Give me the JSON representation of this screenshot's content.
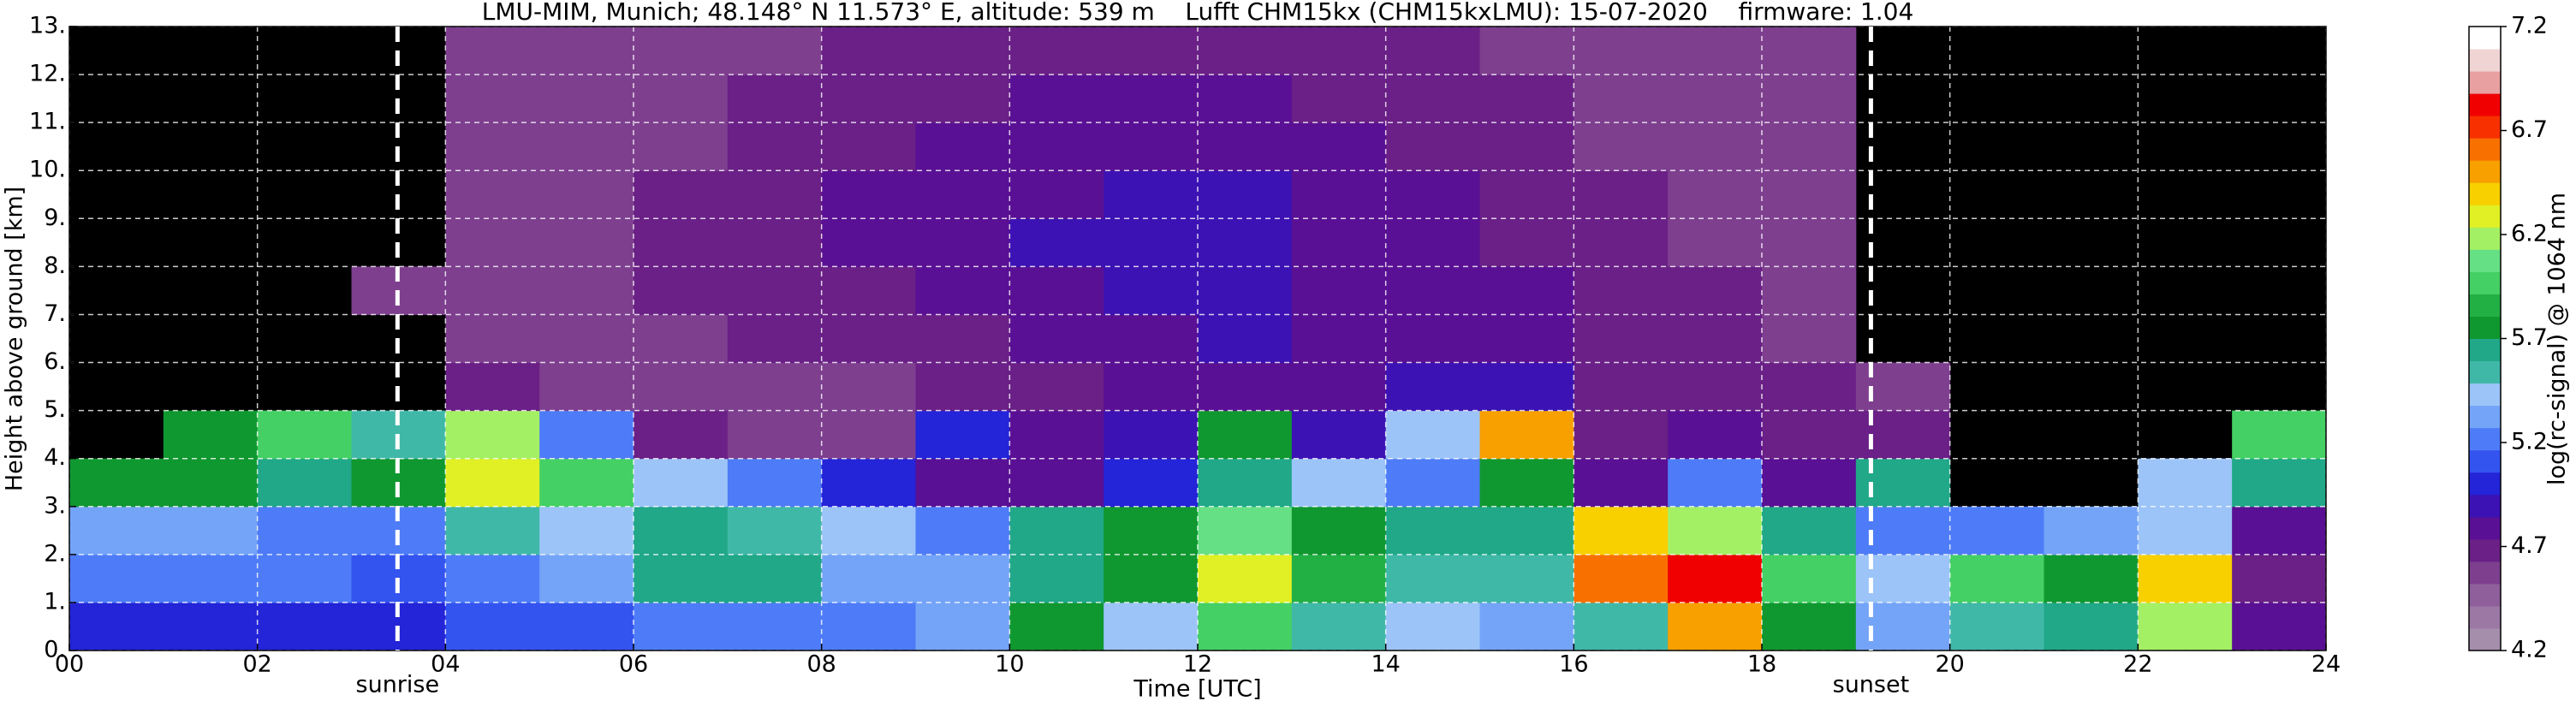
{
  "chart_data": {
    "type": "heatmap",
    "title": "LMU-MIM, Munich; 48.148° N 11.573° E, altitude: 539 m    Lufft CHM15kx (CHM15kxLMU): 15-07-2020    firmware: 1.04",
    "xlabel": "Time [UTC]",
    "ylabel": "Height above ground [km]",
    "colorbar_label": "log(rc-signal) @ 1064 nm",
    "xlim": [
      0,
      24
    ],
    "ylim": [
      0,
      13
    ],
    "xticks": [
      {
        "value": 0,
        "label": "00"
      },
      {
        "value": 2,
        "label": "02"
      },
      {
        "value": 4,
        "label": "04"
      },
      {
        "value": 6,
        "label": "06"
      },
      {
        "value": 8,
        "label": "08"
      },
      10,
      12,
      14,
      16,
      18,
      20,
      22,
      24
    ],
    "yticks": [
      {
        "value": 0,
        "label": "0."
      },
      {
        "value": 1,
        "label": "1."
      },
      {
        "value": 2,
        "label": "2."
      },
      {
        "value": 3,
        "label": "3."
      },
      {
        "value": 4,
        "label": "4."
      },
      {
        "value": 5,
        "label": "5."
      },
      {
        "value": 6,
        "label": "6."
      },
      {
        "value": 7,
        "label": "7."
      },
      {
        "value": 8,
        "label": "8."
      },
      {
        "value": 9,
        "label": "9."
      },
      {
        "value": 10,
        "label": "10."
      },
      {
        "value": 11,
        "label": "11."
      },
      {
        "value": 12,
        "label": "12."
      },
      {
        "value": 13,
        "label": "13."
      }
    ],
    "zlim": [
      4.2,
      7.2
    ],
    "zticks": [
      4.2,
      4.7,
      5.2,
      5.7,
      6.2,
      6.7,
      7.2
    ],
    "grid": true,
    "background": "#000000",
    "colors": [
      "#a58eab",
      "#9c78a5",
      "#8f5f9c",
      "#7e3f8f",
      "#6a2086",
      "#5a1094",
      "#3c12b4",
      "#2424d8",
      "#3454f0",
      "#4e7cf8",
      "#74a4f8",
      "#9cc4f8",
      "#40b8a8",
      "#20a888",
      "#109830",
      "#22b044",
      "#44d064",
      "#66e084",
      "#a4f064",
      "#e0f024",
      "#f8d000",
      "#f8a000",
      "#f87000",
      "#f83000",
      "#f00000",
      "#e8a0a0",
      "#f0d4d4",
      "#ffffff"
    ],
    "annotations": [
      {
        "x": 3.49,
        "label": "sunrise"
      },
      {
        "x": 19.16,
        "label": "sunset"
      }
    ],
    "x": [
      0.5,
      1.5,
      2.5,
      3.5,
      4.5,
      5.5,
      6.5,
      7.5,
      8.5,
      9.5,
      10.5,
      11.5,
      12.5,
      13.5,
      14.5,
      15.5,
      16.5,
      17.5,
      18.5,
      19.5,
      20.5,
      21.5,
      22.5,
      23.5
    ],
    "y": [
      0.5,
      1.5,
      2.5,
      3.5,
      4.5,
      5.5,
      6.5,
      7.5,
      8.5,
      9.5,
      10.5,
      11.5,
      12.5
    ],
    "z": [
      [
        5.0,
        5.0,
        5.0,
        5.0,
        5.1,
        5.1,
        5.2,
        5.2,
        5.2,
        5.3,
        5.8,
        5.4,
        6.0,
        5.5,
        5.4,
        5.3,
        5.5,
        6.5,
        5.8,
        5.3,
        5.5,
        5.6,
        6.2,
        4.8
      ],
      [
        5.2,
        5.2,
        5.2,
        5.1,
        5.2,
        5.3,
        5.6,
        5.6,
        5.3,
        5.3,
        5.6,
        5.8,
        6.3,
        5.9,
        5.5,
        5.5,
        6.6,
        6.8,
        6.0,
        5.4,
        6.0,
        5.8,
        6.4,
        4.7
      ],
      [
        5.3,
        5.3,
        5.2,
        5.2,
        5.5,
        5.4,
        5.6,
        5.5,
        5.4,
        5.2,
        5.6,
        5.7,
        6.1,
        5.8,
        5.6,
        5.6,
        6.4,
        6.2,
        5.6,
        5.2,
        5.2,
        5.3,
        5.4,
        4.8
      ],
      [
        5.8,
        5.7,
        5.6,
        5.8,
        6.3,
        6.0,
        5.4,
        5.2,
        5.0,
        4.8,
        4.8,
        5.0,
        5.6,
        5.4,
        5.2,
        5.8,
        4.8,
        5.2,
        4.8,
        5.6,
        null,
        null,
        5.4,
        5.6
      ],
      [
        null,
        5.8,
        6.0,
        5.5,
        6.2,
        5.2,
        4.7,
        4.6,
        4.6,
        5.0,
        4.8,
        4.9,
        5.8,
        4.9,
        5.4,
        6.5,
        4.7,
        4.8,
        4.7,
        4.7,
        null,
        null,
        null,
        6.0
      ],
      [
        null,
        null,
        null,
        null,
        4.7,
        4.6,
        4.6,
        4.6,
        4.6,
        4.7,
        4.7,
        4.8,
        4.8,
        4.8,
        4.9,
        4.9,
        4.7,
        4.7,
        4.7,
        4.6,
        null,
        null,
        null,
        null
      ],
      [
        null,
        null,
        null,
        null,
        4.6,
        4.6,
        4.6,
        4.7,
        4.7,
        4.7,
        4.8,
        4.8,
        4.9,
        4.8,
        4.8,
        4.8,
        4.7,
        4.7,
        4.6,
        null,
        null,
        null,
        null,
        null
      ],
      [
        null,
        null,
        null,
        4.6,
        4.6,
        4.6,
        4.7,
        4.7,
        4.7,
        4.8,
        4.8,
        4.9,
        4.9,
        4.8,
        4.8,
        4.8,
        4.7,
        4.7,
        4.6,
        null,
        null,
        null,
        null,
        null
      ],
      [
        null,
        null,
        null,
        null,
        4.6,
        4.6,
        4.7,
        4.7,
        4.8,
        4.8,
        4.9,
        4.9,
        4.9,
        4.8,
        4.8,
        4.7,
        4.7,
        4.6,
        4.6,
        null,
        null,
        null,
        null,
        null
      ],
      [
        null,
        null,
        null,
        null,
        4.6,
        4.6,
        4.7,
        4.7,
        4.8,
        4.8,
        4.8,
        4.9,
        4.9,
        4.8,
        4.8,
        4.7,
        4.7,
        4.6,
        4.6,
        null,
        null,
        null,
        null,
        null
      ],
      [
        null,
        null,
        null,
        null,
        4.6,
        4.6,
        4.6,
        4.7,
        4.7,
        4.8,
        4.8,
        4.8,
        4.8,
        4.8,
        4.7,
        4.7,
        4.6,
        4.6,
        4.6,
        null,
        null,
        null,
        null,
        null
      ],
      [
        null,
        null,
        null,
        null,
        4.6,
        4.6,
        4.6,
        4.7,
        4.7,
        4.7,
        4.8,
        4.8,
        4.8,
        4.7,
        4.7,
        4.7,
        4.6,
        4.6,
        4.6,
        null,
        null,
        null,
        null,
        null
      ],
      [
        null,
        null,
        null,
        null,
        4.6,
        4.6,
        4.6,
        4.6,
        4.7,
        4.7,
        4.7,
        4.7,
        4.7,
        4.7,
        4.7,
        4.6,
        4.6,
        4.6,
        4.6,
        null,
        null,
        null,
        null,
        null
      ]
    ]
  }
}
